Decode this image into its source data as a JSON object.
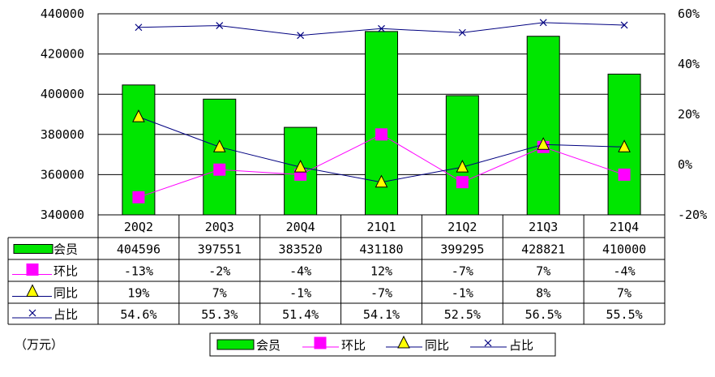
{
  "chart_data": {
    "type": "bar",
    "categories": [
      "20Q2",
      "20Q3",
      "20Q4",
      "21Q1",
      "21Q2",
      "21Q3",
      "21Q4"
    ],
    "unit_label": "（万元）",
    "y_left": {
      "min": 340000,
      "max": 440000,
      "ticks": [
        340000,
        360000,
        380000,
        400000,
        420000,
        440000
      ]
    },
    "y_right": {
      "min": -20,
      "max": 60,
      "ticks": [
        "-20%",
        "0%",
        "20%",
        "40%",
        "60%"
      ]
    },
    "series": [
      {
        "name": "会员",
        "kind": "bar",
        "axis": "left",
        "color": "#00e600",
        "values": [
          404596,
          397551,
          383520,
          431180,
          399295,
          428821,
          410000
        ],
        "labels": [
          "404596",
          "397551",
          "383520",
          "431180",
          "399295",
          "428821",
          "410000"
        ]
      },
      {
        "name": "环比",
        "kind": "line",
        "marker": "square",
        "axis": "right",
        "color": "#ff00ff",
        "values": [
          -13,
          -2,
          -4,
          12,
          -7,
          7,
          -4
        ],
        "labels": [
          "-13%",
          "-2%",
          "-4%",
          "12%",
          "-7%",
          "7%",
          "-4%"
        ]
      },
      {
        "name": "同比",
        "kind": "line",
        "marker": "triangle",
        "axis": "right",
        "color": "#000080",
        "marker_color": "#ffff00",
        "values": [
          19,
          7,
          -1,
          -7,
          -1,
          8,
          7
        ],
        "labels": [
          "19%",
          "7%",
          "-1%",
          "-7%",
          "-1%",
          "8%",
          "7%"
        ]
      },
      {
        "name": "占比",
        "kind": "line",
        "marker": "x",
        "axis": "right",
        "color": "#000080",
        "values": [
          54.6,
          55.3,
          51.4,
          54.1,
          52.5,
          56.5,
          55.5
        ],
        "labels": [
          "54.6%",
          "55.3%",
          "51.4%",
          "54.1%",
          "52.5%",
          "56.5%",
          "55.5%"
        ]
      }
    ],
    "grid": true,
    "legend_position": "bottom"
  }
}
